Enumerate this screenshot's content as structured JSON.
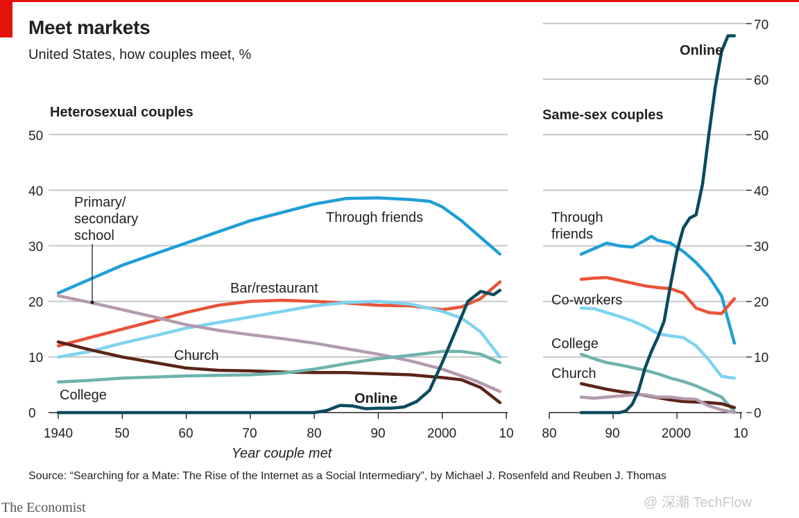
{
  "header": {
    "title": "Meet markets",
    "subtitle": "United States, how couples meet, %"
  },
  "footer": {
    "source": "Source: “Searching for a Mate: The Rise of the Internet as a Social Intermediary”, by Michael J. Rosenfeld and Reuben J. Thomas",
    "brand": "The Economist",
    "watermark": "@ 深潮 TechFlow"
  },
  "colors": {
    "through_friends": "#1f9fd6",
    "bar_restaurant": "#e8533a",
    "co_workers": "#e8533a",
    "college_hetero": "#7fd3f0",
    "college_same": "#7fd3f0",
    "school": "#b49aae",
    "church": "#5b2518",
    "college_teal": "#6fb3ad",
    "online": "#0b4a5e",
    "grid": "#c6c6c6",
    "accent_red": "#e3120b"
  },
  "chart_data": [
    {
      "type": "line",
      "title": "Heterosexual couples",
      "xlabel": "Year couple met",
      "ylabel": "",
      "xlim": [
        1940,
        2010
      ],
      "ylim": [
        0,
        50
      ],
      "grid": true,
      "x_ticks": [
        "1940",
        "50",
        "60",
        "70",
        "80",
        "90",
        "2000",
        "10"
      ],
      "y_ticks": [
        "0",
        "10",
        "20",
        "30",
        "40",
        "50"
      ],
      "series": [
        {
          "key": "friends",
          "name": "Through friends",
          "color": "#1f9fd6",
          "x": [
            1940,
            1945,
            1950,
            1955,
            1960,
            1965,
            1970,
            1975,
            1980,
            1985,
            1990,
            1995,
            1998,
            2000,
            2003,
            2006,
            2009
          ],
          "y": [
            21.5,
            24,
            26.5,
            28.5,
            30.5,
            32.5,
            34.5,
            36,
            37.5,
            38.5,
            38.6,
            38.3,
            38,
            37,
            34.5,
            31.5,
            28.5
          ]
        },
        {
          "key": "bar",
          "name": "Bar/restaurant",
          "color": "#e8533a",
          "x": [
            1940,
            1945,
            1950,
            1955,
            1960,
            1965,
            1970,
            1975,
            1980,
            1985,
            1990,
            1995,
            2000,
            2003,
            2006,
            2009
          ],
          "y": [
            12,
            13.5,
            15,
            16.5,
            18,
            19.3,
            20,
            20.2,
            20,
            19.7,
            19.3,
            19.2,
            18.5,
            19,
            20.5,
            23.5
          ]
        },
        {
          "key": "college_light",
          "name": "",
          "color": "#7fd3f0",
          "x": [
            1940,
            1945,
            1950,
            1955,
            1960,
            1965,
            1970,
            1975,
            1980,
            1985,
            1990,
            1995,
            2000,
            2003,
            2006,
            2009
          ],
          "y": [
            10,
            11,
            12.5,
            13.8,
            15.2,
            16.2,
            17.2,
            18.2,
            19.2,
            19.8,
            20,
            19.5,
            18.2,
            17,
            14.5,
            10
          ]
        },
        {
          "key": "school",
          "name": "Primary/ secondary school",
          "color": "#b49aae",
          "x": [
            1940,
            1945,
            1950,
            1955,
            1960,
            1965,
            1970,
            1975,
            1980,
            1985,
            1990,
            1995,
            2000,
            2005,
            2009
          ],
          "y": [
            21,
            19.8,
            18.5,
            17.2,
            15.8,
            14.8,
            14,
            13.3,
            12.5,
            11.5,
            10.5,
            9.3,
            7.8,
            5.8,
            3.8
          ]
        },
        {
          "key": "church",
          "name": "Church",
          "color": "#5b2518",
          "x": [
            1940,
            1945,
            1950,
            1955,
            1960,
            1965,
            1970,
            1975,
            1980,
            1985,
            1990,
            1995,
            2000,
            2003,
            2006,
            2009
          ],
          "y": [
            12.7,
            11.3,
            10,
            9,
            8,
            7.6,
            7.5,
            7.3,
            7.2,
            7.2,
            7,
            6.8,
            6.3,
            5.9,
            4.5,
            1.8
          ]
        },
        {
          "key": "college",
          "name": "College",
          "color": "#6fb3ad",
          "x": [
            1940,
            1945,
            1950,
            1955,
            1960,
            1965,
            1970,
            1975,
            1980,
            1985,
            1990,
            1995,
            2000,
            2003,
            2006,
            2009
          ],
          "y": [
            5.5,
            5.8,
            6.2,
            6.4,
            6.6,
            6.7,
            6.8,
            7.1,
            7.8,
            8.8,
            9.7,
            10.3,
            11,
            11,
            10.5,
            9
          ]
        },
        {
          "key": "online",
          "name": "Online",
          "color": "#0b4a5e",
          "x": [
            1940,
            1950,
            1960,
            1970,
            1980,
            1982,
            1984,
            1986,
            1988,
            1990,
            1992,
            1994,
            1996,
            1998,
            2000,
            2002,
            2004,
            2006,
            2008,
            2009
          ],
          "y": [
            0,
            0,
            0,
            0,
            0,
            0.4,
            1.3,
            1.2,
            0.7,
            0.8,
            0.8,
            1,
            2,
            4,
            9,
            14.5,
            20,
            21.8,
            21.2,
            22
          ]
        }
      ],
      "annotations": [
        "Primary/",
        "secondary",
        "school",
        "Through friends",
        "Bar/restaurant",
        "Church",
        "College",
        "Online"
      ]
    },
    {
      "type": "line",
      "title": "Same-sex couples",
      "xlabel": "",
      "ylabel": "",
      "xlim": [
        1980,
        2010
      ],
      "ylim": [
        0,
        70
      ],
      "grid": true,
      "x_ticks": [
        "80",
        "90",
        "2000",
        "10"
      ],
      "y_ticks": [
        "0",
        "10",
        "20",
        "30",
        "40",
        "50",
        "60",
        "70"
      ],
      "series": [
        {
          "key": "ss_friends",
          "name": "Through friends",
          "color": "#1f9fd6",
          "x": [
            1985,
            1987,
            1989,
            1991,
            1993,
            1995,
            1996,
            1997,
            1999,
            2001,
            2003,
            2005,
            2007,
            2009
          ],
          "y": [
            28.5,
            29.5,
            30.5,
            30,
            29.8,
            31,
            31.7,
            31,
            30.5,
            29,
            27,
            24.5,
            21,
            12.5
          ]
        },
        {
          "key": "ss_coworkers",
          "name": "Co-workers",
          "color": "#e8533a",
          "x": [
            1985,
            1987,
            1989,
            1991,
            1993,
            1995,
            1997,
            1999,
            2001,
            2003,
            2005,
            2007,
            2009
          ],
          "y": [
            24,
            24.2,
            24.3,
            23.8,
            23.3,
            22.8,
            22.5,
            22.3,
            21.5,
            18.8,
            18,
            17.8,
            20.5
          ]
        },
        {
          "key": "ss_college_light",
          "name": "",
          "color": "#7fd3f0",
          "x": [
            1985,
            1987,
            1989,
            1991,
            1993,
            1995,
            1997,
            1999,
            2001,
            2003,
            2005,
            2007,
            2009
          ],
          "y": [
            18.8,
            18.7,
            18,
            17.3,
            16.5,
            15.5,
            14.2,
            13.8,
            13.5,
            12,
            9.5,
            6.5,
            6.2
          ]
        },
        {
          "key": "ss_college",
          "name": "College",
          "color": "#6fb3ad",
          "x": [
            1985,
            1987,
            1989,
            1991,
            1993,
            1995,
            1997,
            1999,
            2001,
            2003,
            2005,
            2007,
            2009
          ],
          "y": [
            10.5,
            9.7,
            9,
            8.6,
            8.1,
            7.6,
            7,
            6.2,
            5.6,
            4.8,
            3.8,
            2.8,
            0.2
          ]
        },
        {
          "key": "ss_church",
          "name": "Church",
          "color": "#5b2518",
          "x": [
            1985,
            1987,
            1989,
            1991,
            1993,
            1995,
            1997,
            1999,
            2001,
            2003,
            2005,
            2007,
            2009
          ],
          "y": [
            5.2,
            4.7,
            4.2,
            3.8,
            3.5,
            3.1,
            2.7,
            2.3,
            2,
            1.9,
            1.8,
            1.6,
            0.9
          ]
        },
        {
          "key": "ss_school",
          "name": "",
          "color": "#b49aae",
          "x": [
            1985,
            1987,
            1989,
            1991,
            1993,
            1995,
            1997,
            1999,
            2001,
            2003,
            2005,
            2007,
            2009
          ],
          "y": [
            2.8,
            2.6,
            2.8,
            3,
            3.2,
            3.2,
            2.8,
            2.8,
            2.5,
            2.4,
            1.2,
            0.5,
            0
          ]
        },
        {
          "key": "ss_online",
          "name": "Online",
          "color": "#0b4a5e",
          "x": [
            1985,
            1987,
            1989,
            1991,
            1992,
            1993,
            1994,
            1995,
            1996,
            1997,
            1998,
            1999,
            2000,
            2001,
            2002,
            2003,
            2004,
            2005,
            2006,
            2007,
            2008,
            2009
          ],
          "y": [
            0,
            0,
            0,
            0,
            0.3,
            1.5,
            4,
            8,
            11,
            13.5,
            16.5,
            23,
            29,
            33.2,
            35,
            35.6,
            41,
            50,
            58.5,
            65,
            67.8,
            67.8
          ]
        }
      ],
      "annotations": [
        "Through",
        "friends",
        "Co-workers",
        "College",
        "Church",
        "Online"
      ]
    }
  ]
}
